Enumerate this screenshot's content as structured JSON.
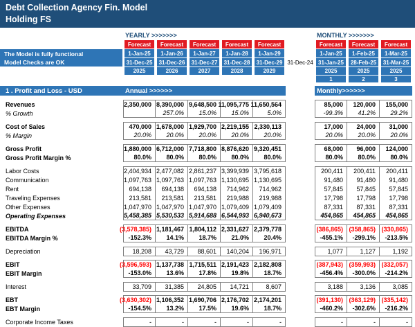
{
  "colors": {
    "dark_blue": "#1F4E79",
    "mid_blue": "#2E75B6",
    "forecast_red": "#E11B22",
    "neg_red": "#FF0000",
    "border_gray": "#7F7F7F"
  },
  "header": {
    "title_line1": "Debt Collection Agency Fin. Model",
    "title_line2": "Holding FS"
  },
  "status": {
    "line1": "The Model is fully functional",
    "line2": "Model Checks are OK"
  },
  "labels": {
    "forecast": "Forecast"
  },
  "separator_date": "31-Dec-24",
  "yearly": {
    "label": "YEARLY >>>>>>>",
    "start_dates": [
      "1-Jan-25",
      "1-Jan-26",
      "1-Jan-27",
      "1-Jan-28",
      "1-Jan-29"
    ],
    "end_dates": [
      "31-Dec-25",
      "31-Dec-26",
      "31-Dec-27",
      "31-Dec-28",
      "31-Dec-29"
    ],
    "years": [
      "2025",
      "2026",
      "2027",
      "2028",
      "2029"
    ]
  },
  "monthly": {
    "label": "MONTHLY >>>>>>>",
    "start_dates": [
      "1-Jan-25",
      "1-Feb-25",
      "1-Mar-25"
    ],
    "end_dates": [
      "31-Jan-25",
      "28-Feb-25",
      "31-Mar-25"
    ],
    "years": [
      "2025",
      "2025",
      "2025"
    ],
    "period_numbers": [
      "1",
      "2",
      "3"
    ]
  },
  "section": {
    "title": "1 . Profit and Loss - USD",
    "annual_label": "Annual >>>>>>",
    "monthly_label": "Monthly>>>>>>"
  },
  "rows": [
    {
      "label": "Revenues",
      "b": 1,
      "gs": 1,
      "annual": [
        "2,350,000",
        "8,390,000",
        "9,648,500",
        "11,095,775",
        "11,650,564"
      ],
      "monthly": [
        "85,000",
        "120,000",
        "155,000"
      ]
    },
    {
      "label": "% Growth",
      "i": 1,
      "ge": 1,
      "annual": [
        "",
        "257.0%",
        "15.0%",
        "15.0%",
        "5.0%"
      ],
      "monthly": [
        "-99.3%",
        "41.2%",
        "29.2%"
      ]
    },
    {
      "blank": true
    },
    {
      "label": "Cost of Sales",
      "b": 1,
      "gs": 1,
      "annual": [
        "470,000",
        "1,678,000",
        "1,929,700",
        "2,219,155",
        "2,330,113"
      ],
      "monthly": [
        "17,000",
        "24,000",
        "31,000"
      ]
    },
    {
      "label": "% Margin",
      "i": 1,
      "ge": 1,
      "annual": [
        "20.0%",
        "20.0%",
        "20.0%",
        "20.0%",
        "20.0%"
      ],
      "monthly": [
        "20.0%",
        "20.0%",
        "20.0%"
      ]
    },
    {
      "blank": true
    },
    {
      "label": "Gross Profit",
      "b": 1,
      "gs": 1,
      "annual": [
        "1,880,000",
        "6,712,000",
        "7,718,800",
        "8,876,620",
        "9,320,451"
      ],
      "monthly": [
        "68,000",
        "96,000",
        "124,000"
      ]
    },
    {
      "label": "Gross Profit Margin %",
      "b": 1,
      "ge": 1,
      "annual": [
        "80.0%",
        "80.0%",
        "80.0%",
        "80.0%",
        "80.0%"
      ],
      "monthly": [
        "80.0%",
        "80.0%",
        "80.0%"
      ]
    },
    {
      "blank": true
    },
    {
      "label": "Labor Costs",
      "gs": 1,
      "annual": [
        "2,404,934",
        "2,477,082",
        "2,861,237",
        "3,399,939",
        "3,795,618"
      ],
      "monthly": [
        "200,411",
        "200,411",
        "200,411"
      ]
    },
    {
      "label": "Communication",
      "annual": [
        "1,097,763",
        "1,097,763",
        "1,097,763",
        "1,130,695",
        "1,130,695"
      ],
      "monthly": [
        "91,480",
        "91,480",
        "91,480"
      ]
    },
    {
      "label": "Rent",
      "annual": [
        "694,138",
        "694,138",
        "694,138",
        "714,962",
        "714,962"
      ],
      "monthly": [
        "57,845",
        "57,845",
        "57,845"
      ]
    },
    {
      "label": "Traveling Expenses",
      "annual": [
        "213,581",
        "213,581",
        "213,581",
        "219,988",
        "219,988"
      ],
      "monthly": [
        "17,798",
        "17,798",
        "17,798"
      ]
    },
    {
      "label": "Other Expenses",
      "annual": [
        "1,047,970",
        "1,047,970",
        "1,047,970",
        "1,079,409",
        "1,079,409"
      ],
      "monthly": [
        "87,331",
        "87,331",
        "87,331"
      ]
    },
    {
      "label": "Operating Expenses",
      "b": 1,
      "i": 1,
      "ge": 1,
      "annual": [
        "5,458,385",
        "5,530,533",
        "5,914,688",
        "6,544,993",
        "6,940,673"
      ],
      "monthly": [
        "454,865",
        "454,865",
        "454,865"
      ]
    },
    {
      "blank": true
    },
    {
      "label": "EBITDA",
      "b": 1,
      "gs": 1,
      "annual": [
        "(3,578,385)",
        "1,181,467",
        "1,804,112",
        "2,331,627",
        "2,379,778"
      ],
      "monthly": [
        "(386,865)",
        "(358,865)",
        "(330,865)"
      ]
    },
    {
      "label": "EBITDA Margin %",
      "b": 1,
      "ge": 1,
      "annual": [
        "-152.3%",
        "14.1%",
        "18.7%",
        "21.0%",
        "20.4%"
      ],
      "monthly": [
        "-455.1%",
        "-299.1%",
        "-213.5%"
      ]
    },
    {
      "blank": true
    },
    {
      "label": "Depreciation",
      "gs": 1,
      "ge": 1,
      "annual": [
        "18,208",
        "43,729",
        "88,601",
        "140,204",
        "196,971"
      ],
      "monthly": [
        "1,077",
        "1,127",
        "1,192"
      ]
    },
    {
      "blank": true
    },
    {
      "label": "EBIT",
      "b": 1,
      "gs": 1,
      "annual": [
        "(3,596,593)",
        "1,137,738",
        "1,715,511",
        "2,191,423",
        "2,182,808"
      ],
      "monthly": [
        "(387,943)",
        "(359,993)",
        "(332,057)"
      ]
    },
    {
      "label": "EBIT Margin",
      "b": 1,
      "ge": 1,
      "annual": [
        "-153.0%",
        "13.6%",
        "17.8%",
        "19.8%",
        "18.7%"
      ],
      "monthly": [
        "-456.4%",
        "-300.0%",
        "-214.2%"
      ]
    },
    {
      "blank": true
    },
    {
      "label": "Interest",
      "gs": 1,
      "ge": 1,
      "annual": [
        "33,709",
        "31,385",
        "24,805",
        "14,721",
        "8,607"
      ],
      "monthly": [
        "3,188",
        "3,136",
        "3,085"
      ]
    },
    {
      "blank": true
    },
    {
      "label": "EBT",
      "b": 1,
      "gs": 1,
      "annual": [
        "(3,630,302)",
        "1,106,352",
        "1,690,706",
        "2,176,702",
        "2,174,201"
      ],
      "monthly": [
        "(391,130)",
        "(363,129)",
        "(335,142)"
      ]
    },
    {
      "label": "EBT Margin",
      "b": 1,
      "ge": 1,
      "annual": [
        "-154.5%",
        "13.2%",
        "17.5%",
        "19.6%",
        "18.7%"
      ],
      "monthly": [
        "-460.2%",
        "-302.6%",
        "-216.2%"
      ]
    },
    {
      "blank": true
    },
    {
      "label": "Corporate Income Taxes",
      "gs": 1,
      "ge": 1,
      "annual": [
        "-",
        "-",
        "-",
        "-",
        "-"
      ],
      "monthly": [
        "-",
        "-",
        "-"
      ]
    }
  ]
}
